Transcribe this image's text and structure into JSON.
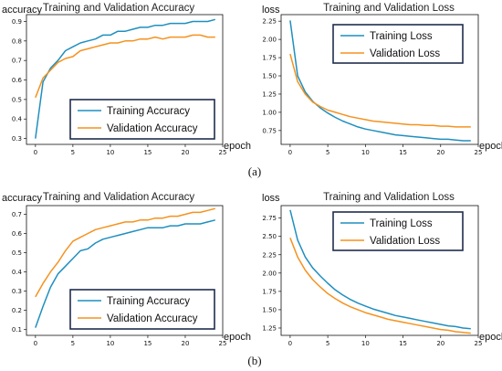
{
  "captions": [
    "(a)",
    "(b)"
  ],
  "colors": {
    "training": "#1f8fbf",
    "validation": "#f5921e"
  },
  "chart_data": [
    {
      "type": "line",
      "title": "Training and Validation Accuracy",
      "xlabel": "epoch",
      "ylabel": "accuracy",
      "xlim": [
        -1.2,
        25
      ],
      "ylim": [
        0.27,
        0.935
      ],
      "xticks": [
        0,
        5,
        10,
        15,
        20,
        25
      ],
      "yticks": [
        0.3,
        0.4,
        0.5,
        0.6,
        0.7,
        0.8,
        0.9
      ],
      "legend_position": "lower-right",
      "x": [
        0,
        1,
        2,
        3,
        4,
        5,
        6,
        7,
        8,
        9,
        10,
        11,
        12,
        13,
        14,
        15,
        16,
        17,
        18,
        19,
        20,
        21,
        22,
        23,
        24
      ],
      "series": [
        {
          "name": "Training Accuracy",
          "color": "training",
          "values": [
            0.3,
            0.59,
            0.66,
            0.7,
            0.75,
            0.77,
            0.79,
            0.8,
            0.81,
            0.83,
            0.83,
            0.85,
            0.85,
            0.86,
            0.87,
            0.87,
            0.88,
            0.88,
            0.89,
            0.89,
            0.89,
            0.9,
            0.9,
            0.9,
            0.91
          ]
        },
        {
          "name": "Validation Accuracy",
          "color": "validation",
          "values": [
            0.51,
            0.61,
            0.65,
            0.69,
            0.71,
            0.72,
            0.75,
            0.76,
            0.77,
            0.78,
            0.79,
            0.79,
            0.8,
            0.8,
            0.81,
            0.81,
            0.82,
            0.81,
            0.82,
            0.82,
            0.82,
            0.83,
            0.83,
            0.82,
            0.82
          ]
        }
      ]
    },
    {
      "type": "line",
      "title": "Training and Validation Loss",
      "xlabel": "epoch",
      "ylabel": "loss",
      "xlim": [
        -1.2,
        25
      ],
      "ylim": [
        0.56,
        2.34
      ],
      "xticks": [
        0,
        5,
        10,
        15,
        20,
        25
      ],
      "yticks": [
        0.75,
        1.0,
        1.25,
        1.5,
        1.75,
        2.0,
        2.25
      ],
      "legend_position": "upper-right",
      "x": [
        0,
        1,
        2,
        3,
        4,
        5,
        6,
        7,
        8,
        9,
        10,
        11,
        12,
        13,
        14,
        15,
        16,
        17,
        18,
        19,
        20,
        21,
        22,
        23,
        24
      ],
      "series": [
        {
          "name": "Training Loss",
          "color": "training",
          "values": [
            2.26,
            1.5,
            1.28,
            1.15,
            1.06,
            0.99,
            0.93,
            0.88,
            0.84,
            0.8,
            0.77,
            0.75,
            0.73,
            0.71,
            0.69,
            0.68,
            0.67,
            0.66,
            0.65,
            0.64,
            0.63,
            0.63,
            0.62,
            0.61,
            0.61
          ]
        },
        {
          "name": "Validation Loss",
          "color": "validation",
          "values": [
            1.8,
            1.42,
            1.25,
            1.14,
            1.08,
            1.03,
            1.0,
            0.97,
            0.94,
            0.92,
            0.9,
            0.88,
            0.87,
            0.86,
            0.85,
            0.84,
            0.83,
            0.83,
            0.82,
            0.82,
            0.81,
            0.81,
            0.8,
            0.8,
            0.8
          ]
        }
      ]
    },
    {
      "type": "line",
      "title": "Training and Validation Accuracy",
      "xlabel": "epoch",
      "ylabel": "accuracy",
      "xlim": [
        -1.2,
        25
      ],
      "ylim": [
        0.07,
        0.745
      ],
      "xticks": [
        0,
        5,
        10,
        15,
        20,
        25
      ],
      "yticks": [
        0.1,
        0.2,
        0.3,
        0.4,
        0.5,
        0.6,
        0.7
      ],
      "legend_position": "lower-right",
      "x": [
        0,
        1,
        2,
        3,
        4,
        5,
        6,
        7,
        8,
        9,
        10,
        11,
        12,
        13,
        14,
        15,
        16,
        17,
        18,
        19,
        20,
        21,
        22,
        23,
        24
      ],
      "series": [
        {
          "name": "Training Accuracy",
          "color": "training",
          "values": [
            0.11,
            0.22,
            0.32,
            0.39,
            0.43,
            0.47,
            0.51,
            0.52,
            0.55,
            0.57,
            0.58,
            0.59,
            0.6,
            0.61,
            0.62,
            0.63,
            0.63,
            0.63,
            0.64,
            0.64,
            0.65,
            0.65,
            0.65,
            0.66,
            0.67
          ]
        },
        {
          "name": "Validation Accuracy",
          "color": "validation",
          "values": [
            0.27,
            0.34,
            0.4,
            0.45,
            0.51,
            0.56,
            0.58,
            0.6,
            0.62,
            0.63,
            0.64,
            0.65,
            0.66,
            0.66,
            0.67,
            0.67,
            0.68,
            0.68,
            0.69,
            0.69,
            0.7,
            0.71,
            0.71,
            0.72,
            0.73
          ]
        }
      ]
    },
    {
      "type": "line",
      "title": "Training and Validation Loss",
      "xlabel": "epoch",
      "ylabel": "loss",
      "xlim": [
        -1.2,
        25
      ],
      "ylim": [
        1.15,
        2.92
      ],
      "xticks": [
        0,
        5,
        10,
        15,
        20,
        25
      ],
      "yticks": [
        1.25,
        1.5,
        1.75,
        2.0,
        2.25,
        2.5,
        2.75
      ],
      "legend_position": "upper-right",
      "x": [
        0,
        1,
        2,
        3,
        4,
        5,
        6,
        7,
        8,
        9,
        10,
        11,
        12,
        13,
        14,
        15,
        16,
        17,
        18,
        19,
        20,
        21,
        22,
        23,
        24
      ],
      "series": [
        {
          "name": "Training Loss",
          "color": "training",
          "values": [
            2.86,
            2.45,
            2.22,
            2.07,
            1.96,
            1.86,
            1.77,
            1.7,
            1.64,
            1.59,
            1.55,
            1.51,
            1.48,
            1.45,
            1.42,
            1.4,
            1.38,
            1.36,
            1.34,
            1.32,
            1.3,
            1.28,
            1.27,
            1.25,
            1.24
          ]
        },
        {
          "name": "Validation Loss",
          "color": "validation",
          "values": [
            2.48,
            2.22,
            2.04,
            1.91,
            1.81,
            1.72,
            1.65,
            1.59,
            1.54,
            1.5,
            1.46,
            1.43,
            1.4,
            1.37,
            1.35,
            1.33,
            1.31,
            1.29,
            1.27,
            1.25,
            1.23,
            1.22,
            1.2,
            1.19,
            1.18
          ]
        }
      ]
    }
  ]
}
